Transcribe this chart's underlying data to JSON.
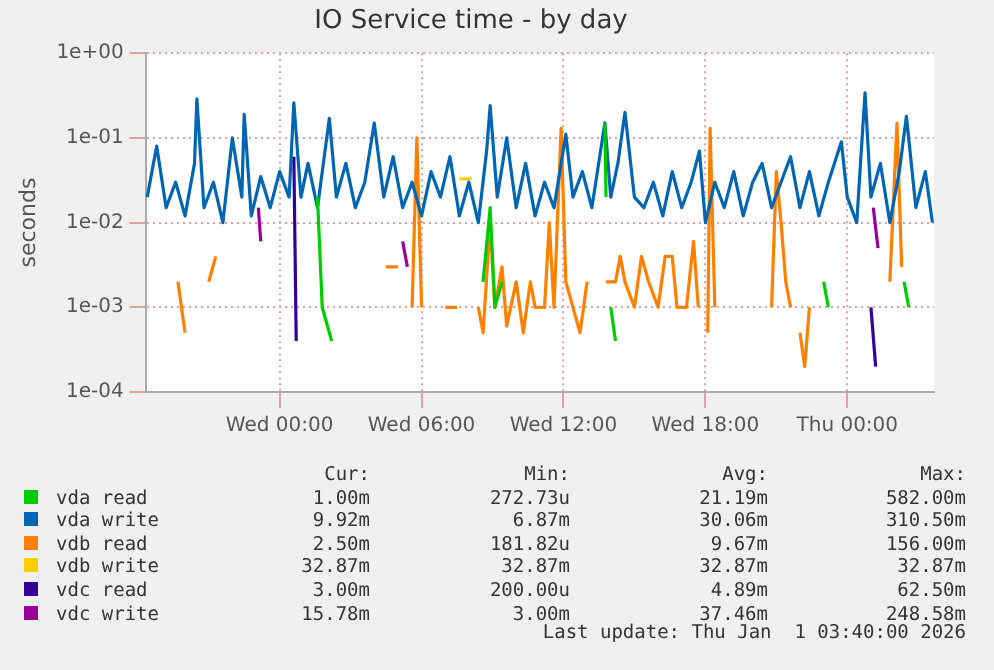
{
  "chart_data": {
    "type": "line",
    "title": "IO Service time - by day",
    "ylabel": "seconds",
    "log": "y",
    "grid": true,
    "legend": "bottom",
    "marker": "none",
    "line_style": "solid",
    "xlim": [
      "2025-12-30T18:20",
      "2026-01-01T03:40"
    ],
    "xticks": [
      {
        "value": "2025-12-31T00:00",
        "label": "Wed 00:00"
      },
      {
        "value": "2025-12-31T06:00",
        "label": "Wed 06:00"
      },
      {
        "value": "2025-12-31T12:00",
        "label": "Wed 12:00"
      },
      {
        "value": "2025-12-31T18:00",
        "label": "Wed 18:00"
      },
      {
        "value": "2026-01-01T00:00",
        "label": "Thu 00:00"
      }
    ],
    "ylim": [
      0.0001,
      1
    ],
    "yticks": [
      {
        "value": 0.0001,
        "label": "1e-04"
      },
      {
        "value": 0.001,
        "label": "1e-03"
      },
      {
        "value": 0.01,
        "label": "1e-02"
      },
      {
        "value": 0.1,
        "label": "1e-01"
      },
      {
        "value": 1,
        "label": "1e+00"
      }
    ],
    "series": [
      {
        "name": "vda read",
        "color": "#00cc00",
        "x": [
          "2025-12-31T01:36",
          "2025-12-31T01:48",
          "2025-12-31T02:12",
          "2025-12-31T02:18",
          "2025-12-31T08:36",
          "2025-12-31T08:54",
          "2025-12-31T09:06",
          "2025-12-31T09:24",
          "2025-12-31T09:30",
          "2025-12-31T13:45",
          "2025-12-31T13:48",
          "2025-12-31T13:54",
          "2025-12-31T14:00",
          "2025-12-31T14:12",
          "2025-12-31T14:18",
          "2025-12-31T23:00",
          "2025-12-31T23:12",
          "2025-12-31T23:18",
          "2026-01-01T02:24",
          "2026-01-01T02:36"
        ],
        "values": [
          0.02,
          0.001,
          0.0004,
          null,
          0.002,
          0.015,
          0.001,
          0.002,
          null,
          0.15,
          0.02,
          null,
          0.001,
          0.0004,
          null,
          0.002,
          0.001,
          null,
          0.002,
          0.001
        ]
      },
      {
        "name": "vda write",
        "color": "#0066b3",
        "x": [
          "2025-12-30T18:24",
          "2025-12-30T18:48",
          "2025-12-30T19:12",
          "2025-12-30T19:36",
          "2025-12-30T20:00",
          "2025-12-30T20:24",
          "2025-12-30T20:30",
          "2025-12-30T20:48",
          "2025-12-30T21:12",
          "2025-12-30T21:36",
          "2025-12-30T22:00",
          "2025-12-30T22:24",
          "2025-12-30T22:30",
          "2025-12-30T22:48",
          "2025-12-30T23:12",
          "2025-12-30T23:36",
          "2025-12-31T00:00",
          "2025-12-31T00:24",
          "2025-12-31T00:36",
          "2025-12-31T00:54",
          "2025-12-31T01:12",
          "2025-12-31T01:36",
          "2025-12-31T02:06",
          "2025-12-31T02:24",
          "2025-12-31T02:48",
          "2025-12-31T03:12",
          "2025-12-31T03:36",
          "2025-12-31T04:00",
          "2025-12-31T04:24",
          "2025-12-31T04:48",
          "2025-12-31T05:12",
          "2025-12-31T05:36",
          "2025-12-31T06:00",
          "2025-12-31T06:24",
          "2025-12-31T06:48",
          "2025-12-31T07:12",
          "2025-12-31T07:36",
          "2025-12-31T08:00",
          "2025-12-31T08:24",
          "2025-12-31T08:45",
          "2025-12-31T08:54",
          "2025-12-31T09:12",
          "2025-12-31T09:36",
          "2025-12-31T10:00",
          "2025-12-31T10:24",
          "2025-12-31T10:48",
          "2025-12-31T11:12",
          "2025-12-31T11:36",
          "2025-12-31T12:06",
          "2025-12-31T12:24",
          "2025-12-31T12:48",
          "2025-12-31T13:12",
          "2025-12-31T13:45",
          "2025-12-31T14:00",
          "2025-12-31T14:18",
          "2025-12-31T14:36",
          "2025-12-31T15:00",
          "2025-12-31T15:24",
          "2025-12-31T15:48",
          "2025-12-31T16:12",
          "2025-12-31T16:36",
          "2025-12-31T17:00",
          "2025-12-31T17:24",
          "2025-12-31T17:45",
          "2025-12-31T18:00",
          "2025-12-31T18:24",
          "2025-12-31T18:48",
          "2025-12-31T19:12",
          "2025-12-31T19:36",
          "2025-12-31T20:00",
          "2025-12-31T20:24",
          "2025-12-31T20:48",
          "2025-12-31T21:12",
          "2025-12-31T21:36",
          "2025-12-31T22:00",
          "2025-12-31T22:24",
          "2025-12-31T22:48",
          "2025-12-31T23:12",
          "2025-12-31T23:45",
          "2026-01-01T00:00",
          "2026-01-01T00:24",
          "2026-01-01T00:45",
          "2026-01-01T01:00",
          "2026-01-01T01:24",
          "2026-01-01T01:48",
          "2026-01-01T02:12",
          "2026-01-01T02:30",
          "2026-01-01T02:54",
          "2026-01-01T03:18",
          "2026-01-01T03:36"
        ],
        "values": [
          0.02,
          0.08,
          0.015,
          0.03,
          0.012,
          0.05,
          0.29,
          0.015,
          0.03,
          0.01,
          0.1,
          0.02,
          0.19,
          0.012,
          0.035,
          0.015,
          0.04,
          0.02,
          0.26,
          0.02,
          0.05,
          0.015,
          0.17,
          0.02,
          0.05,
          0.015,
          0.03,
          0.15,
          0.02,
          0.06,
          0.015,
          0.03,
          0.012,
          0.04,
          0.02,
          0.06,
          0.012,
          0.03,
          0.01,
          0.07,
          0.24,
          0.02,
          0.1,
          0.015,
          0.05,
          0.012,
          0.03,
          0.015,
          0.11,
          0.02,
          0.04,
          0.015,
          0.15,
          0.02,
          0.05,
          0.2,
          0.02,
          0.015,
          0.03,
          0.012,
          0.04,
          0.015,
          0.03,
          0.07,
          0.01,
          0.03,
          0.015,
          0.04,
          0.012,
          0.03,
          0.05,
          0.015,
          0.03,
          0.06,
          0.015,
          0.04,
          0.012,
          0.03,
          0.09,
          0.02,
          0.01,
          0.34,
          0.02,
          0.05,
          0.01,
          0.04,
          0.18,
          0.015,
          0.04,
          0.01
        ]
      },
      {
        "name": "vdb read",
        "color": "#ff8000",
        "x": [
          "2025-12-30T19:42",
          "2025-12-30T20:00",
          "2025-12-30T20:06",
          "2025-12-30T21:00",
          "2025-12-30T21:18",
          "2025-12-30T21:24",
          "2025-12-31T04:30",
          "2025-12-31T05:00",
          "2025-12-31T05:06",
          "2025-12-31T05:36",
          "2025-12-31T05:48",
          "2025-12-31T06:00",
          "2025-12-31T06:06",
          "2025-12-31T07:00",
          "2025-12-31T07:30",
          "2025-12-31T07:36",
          "2025-12-31T08:24",
          "2025-12-31T08:36",
          "2025-12-31T08:54",
          "2025-12-31T09:06",
          "2025-12-31T09:24",
          "2025-12-31T09:36",
          "2025-12-31T10:00",
          "2025-12-31T10:18",
          "2025-12-31T10:36",
          "2025-12-31T10:48",
          "2025-12-31T11:12",
          "2025-12-31T11:24",
          "2025-12-31T11:36",
          "2025-12-31T11:54",
          "2025-12-31T12:06",
          "2025-12-31T12:24",
          "2025-12-31T12:42",
          "2025-12-31T13:00",
          "2025-12-31T13:06",
          "2025-12-31T13:48",
          "2025-12-31T14:12",
          "2025-12-31T14:24",
          "2025-12-31T14:36",
          "2025-12-31T15:00",
          "2025-12-31T15:18",
          "2025-12-31T15:36",
          "2025-12-31T16:00",
          "2025-12-31T16:18",
          "2025-12-31T16:36",
          "2025-12-31T16:48",
          "2025-12-31T17:12",
          "2025-12-31T17:30",
          "2025-12-31T17:42",
          "2025-12-31T17:48",
          "2025-12-31T18:06",
          "2025-12-31T18:12",
          "2025-12-31T18:24",
          "2025-12-31T18:30",
          "2025-12-31T20:48",
          "2025-12-31T21:00",
          "2025-12-31T21:12",
          "2025-12-31T21:24",
          "2025-12-31T21:36",
          "2025-12-31T21:42",
          "2025-12-31T22:00",
          "2025-12-31T22:12",
          "2025-12-31T22:24",
          "2025-12-31T22:30",
          "2026-01-01T01:48",
          "2026-01-01T02:06",
          "2026-01-01T02:18"
        ],
        "values": [
          0.002,
          0.0005,
          null,
          0.002,
          0.004,
          null,
          0.003,
          0.003,
          null,
          0.001,
          0.1,
          0.001,
          null,
          0.001,
          0.001,
          null,
          0.001,
          0.0005,
          0.01,
          0.001,
          0.003,
          0.0006,
          0.002,
          0.0005,
          0.002,
          0.001,
          0.001,
          0.01,
          0.001,
          0.13,
          0.002,
          0.001,
          0.0005,
          0.002,
          null,
          0.002,
          0.002,
          0.004,
          0.002,
          0.001,
          0.004,
          0.002,
          0.001,
          0.004,
          0.004,
          0.001,
          0.001,
          0.006,
          0.001,
          null,
          0.0005,
          0.13,
          0.001,
          null,
          0.001,
          0.04,
          0.01,
          0.002,
          0.001,
          null,
          0.0005,
          0.0002,
          0.001,
          null,
          0.002,
          0.15,
          0.003
        ]
      },
      {
        "name": "vdb write",
        "color": "#ffcc00",
        "x": [
          "2025-12-31T07:36",
          "2025-12-31T08:06"
        ],
        "values": [
          0.0329,
          0.0329
        ]
      },
      {
        "name": "vdc read",
        "color": "#330099",
        "x": [
          "2025-12-31T00:36",
          "2025-12-31T00:42",
          "2025-12-31T00:48",
          "2026-01-01T01:00",
          "2026-01-01T01:12"
        ],
        "values": [
          0.06,
          0.0004,
          null,
          0.001,
          0.0002
        ]
      },
      {
        "name": "vdc write",
        "color": "#990099",
        "x": [
          "2025-12-30T23:06",
          "2025-12-30T23:12",
          "2025-12-30T23:18",
          "2025-12-31T05:12",
          "2025-12-31T05:24",
          "2025-12-31T05:30",
          "2026-01-01T01:06",
          "2026-01-01T01:18"
        ],
        "values": [
          0.015,
          0.006,
          null,
          0.006,
          0.003,
          null,
          0.015,
          0.005
        ]
      }
    ],
    "annotations": [
      "Cur:",
      "Min:",
      "Avg:",
      "Max:",
      "1.00m",
      "272.73u",
      "21.19m",
      "582.00m",
      "9.92m",
      "6.87m",
      "30.06m",
      "310.50m",
      "2.50m",
      "181.82u",
      "9.67m",
      "156.00m",
      "32.87m",
      "32.87m",
      "32.87m",
      "32.87m",
      "3.00m",
      "200.00u",
      "4.89m",
      "62.50m",
      "15.78m",
      "3.00m",
      "37.46m",
      "248.58m",
      "Last update: Thu Jan  1 03:40:00 2026"
    ]
  }
}
